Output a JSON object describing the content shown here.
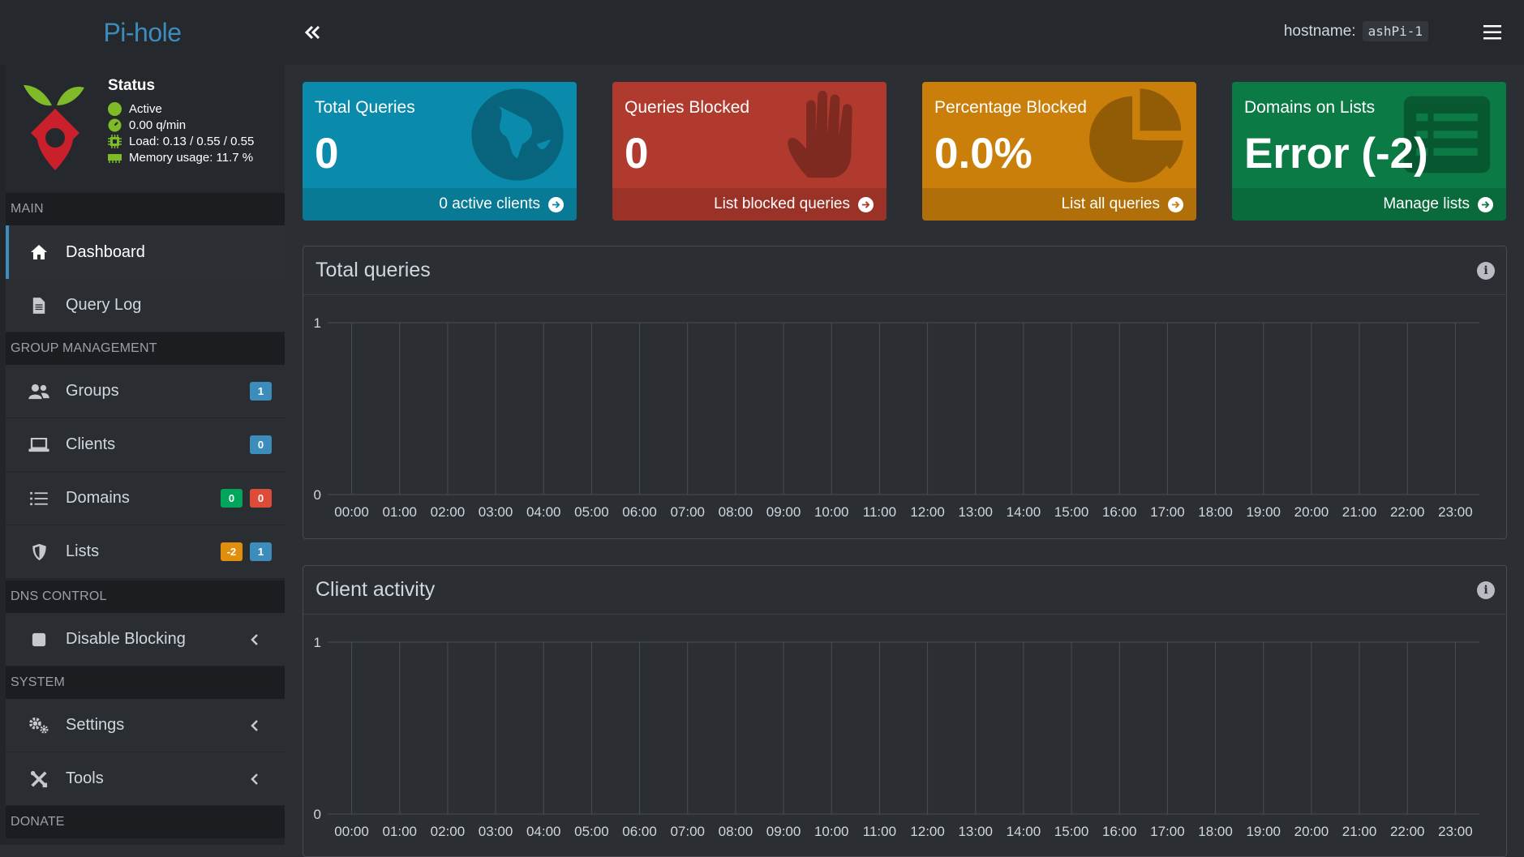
{
  "brand": {
    "name": "Pi-hole"
  },
  "status": {
    "title": "Status",
    "active": "Active",
    "rate": "0.00 q/min",
    "load": "Load: 0.13 / 0.55 / 0.55",
    "memory": "Memory usage: 11.7 %"
  },
  "sidebar": {
    "sections": {
      "main": "MAIN",
      "group": "GROUP MANAGEMENT",
      "dns": "DNS CONTROL",
      "system": "SYSTEM",
      "donate": "DONATE"
    },
    "items": {
      "dashboard": "Dashboard",
      "querylog": "Query Log",
      "groups": {
        "label": "Groups",
        "badge": "1"
      },
      "clients": {
        "label": "Clients",
        "badge": "0"
      },
      "domains": {
        "label": "Domains",
        "badge_allow": "0",
        "badge_deny": "0"
      },
      "lists": {
        "label": "Lists",
        "badge_error": "-2",
        "badge_count": "1"
      },
      "disable": "Disable Blocking",
      "settings": "Settings",
      "tools": "Tools"
    }
  },
  "topbar": {
    "hostname_label": "hostname:",
    "hostname": "ashPi-1"
  },
  "stats": [
    {
      "label": "Total Queries",
      "value": "0",
      "footer": "0 active clients",
      "color": "#0a8bab"
    },
    {
      "label": "Queries Blocked",
      "value": "0",
      "footer": "List blocked queries",
      "color": "#b03a2e"
    },
    {
      "label": "Percentage Blocked",
      "value": "0.0%",
      "footer": "List all queries",
      "color": "#c97f0a"
    },
    {
      "label": "Domains on Lists",
      "value": "Error (-2)",
      "footer": "Manage lists",
      "color": "#0b7a44"
    }
  ],
  "panels": {
    "total_queries": "Total queries",
    "client_activity": "Client activity"
  },
  "chart_data": [
    {
      "type": "bar",
      "title": "Total queries",
      "categories": [
        "00:00",
        "01:00",
        "02:00",
        "03:00",
        "04:00",
        "05:00",
        "06:00",
        "07:00",
        "08:00",
        "09:00",
        "10:00",
        "11:00",
        "12:00",
        "13:00",
        "14:00",
        "15:00",
        "16:00",
        "17:00",
        "18:00",
        "19:00",
        "20:00",
        "21:00",
        "22:00",
        "23:00"
      ],
      "values": [
        0,
        0,
        0,
        0,
        0,
        0,
        0,
        0,
        0,
        0,
        0,
        0,
        0,
        0,
        0,
        0,
        0,
        0,
        0,
        0,
        0,
        0,
        0,
        0
      ],
      "ylim": [
        0,
        1
      ],
      "yticks": [
        "1",
        "0"
      ],
      "grid": true
    },
    {
      "type": "bar",
      "title": "Client activity",
      "categories": [
        "00:00",
        "01:00",
        "02:00",
        "03:00",
        "04:00",
        "05:00",
        "06:00",
        "07:00",
        "08:00",
        "09:00",
        "10:00",
        "11:00",
        "12:00",
        "13:00",
        "14:00",
        "15:00",
        "16:00",
        "17:00",
        "18:00",
        "19:00",
        "20:00",
        "21:00",
        "22:00",
        "23:00"
      ],
      "values": [
        0,
        0,
        0,
        0,
        0,
        0,
        0,
        0,
        0,
        0,
        0,
        0,
        0,
        0,
        0,
        0,
        0,
        0,
        0,
        0,
        0,
        0,
        0,
        0
      ],
      "ylim": [
        0,
        1
      ],
      "yticks": [
        "1",
        "0"
      ],
      "grid": true
    }
  ]
}
